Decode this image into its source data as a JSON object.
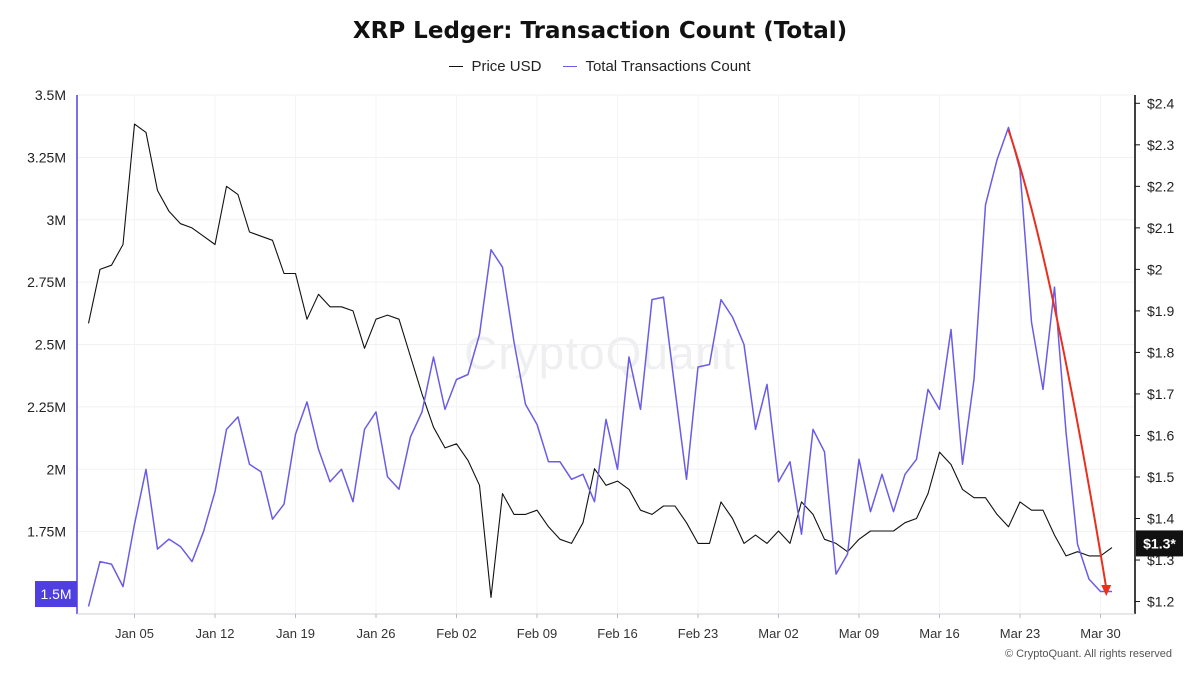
{
  "watermark": "CryptoQuant",
  "copyright": "© CryptoQuant. All rights reserved",
  "colors": {
    "price": "#111111",
    "transactions": "#6b5ce7",
    "arrow": "#e8301d",
    "left_axis": "#5b4be3",
    "badge_left_bg": "#4f3fe0",
    "badge_right_bg": "#111111"
  },
  "chart_data": {
    "type": "line",
    "title": "XRP Ledger: Transaction Count (Total)",
    "x_tick_labels": [
      "Jan 05",
      "Jan 12",
      "Jan 19",
      "Jan 26",
      "Feb 02",
      "Feb 09",
      "Feb 16",
      "Feb 23",
      "Mar 02",
      "Mar 09",
      "Mar 16",
      "Mar 23",
      "Mar 30"
    ],
    "x_tick_days": [
      4,
      11,
      18,
      25,
      32,
      39,
      46,
      53,
      60,
      67,
      74,
      81,
      88
    ],
    "left_axis": {
      "ylim": [
        1.42,
        3.5
      ],
      "ticks": [
        1.75,
        2,
        2.25,
        2.5,
        2.75,
        3,
        3.25,
        3.5
      ],
      "tick_labels": [
        "1.75M",
        "2M",
        "2.25M",
        "2.5M",
        "2.75M",
        "3M",
        "3.25M",
        "3.5M"
      ],
      "current_label": "1.5M",
      "current_value": 1.5
    },
    "right_axis": {
      "ylim": [
        1.17,
        2.42
      ],
      "ticks": [
        1.2,
        1.3,
        1.4,
        1.5,
        1.6,
        1.7,
        1.8,
        1.9,
        2,
        2.1,
        2.2,
        2.3,
        2.4
      ],
      "tick_labels": [
        "$1.2",
        "$1.3",
        "$1.4",
        "$1.5",
        "$1.6",
        "$1.7",
        "$1.8",
        "$1.9",
        "$2",
        "$2.1",
        "$2.2",
        "$2.3",
        "$2.4"
      ],
      "current_label": "$1.3*",
      "current_value": 1.34
    },
    "grid": true,
    "legend_position": "top-center",
    "series": [
      {
        "name": "Price USD",
        "axis": "right",
        "x_start_day": 0,
        "values": [
          1.87,
          2.0,
          2.01,
          2.06,
          2.35,
          2.33,
          2.19,
          2.14,
          2.11,
          2.1,
          2.08,
          2.06,
          2.2,
          2.18,
          2.09,
          2.08,
          2.07,
          1.99,
          1.99,
          1.88,
          1.94,
          1.91,
          1.91,
          1.9,
          1.81,
          1.88,
          1.89,
          1.88,
          1.79,
          1.7,
          1.62,
          1.57,
          1.58,
          1.54,
          1.48,
          1.21,
          1.46,
          1.41,
          1.41,
          1.42,
          1.38,
          1.35,
          1.34,
          1.39,
          1.52,
          1.48,
          1.49,
          1.47,
          1.42,
          1.41,
          1.43,
          1.43,
          1.39,
          1.34,
          1.34,
          1.44,
          1.4,
          1.34,
          1.36,
          1.34,
          1.37,
          1.34,
          1.44,
          1.41,
          1.35,
          1.34,
          1.32,
          1.35,
          1.37,
          1.37,
          1.37,
          1.39,
          1.4,
          1.46,
          1.56,
          1.53,
          1.47,
          1.45,
          1.45,
          1.41,
          1.38,
          1.44,
          1.42,
          1.42,
          1.36,
          1.31,
          1.32,
          1.31,
          1.31,
          1.33
        ]
      },
      {
        "name": "Total Transactions Count",
        "axis": "left",
        "x_start_day": 0,
        "values": [
          1.45,
          1.63,
          1.62,
          1.53,
          1.78,
          2.0,
          1.68,
          1.72,
          1.69,
          1.63,
          1.75,
          1.91,
          2.16,
          2.21,
          2.02,
          1.99,
          1.8,
          1.86,
          2.14,
          2.27,
          2.08,
          1.95,
          2.0,
          1.87,
          2.16,
          2.23,
          1.97,
          1.92,
          2.13,
          2.23,
          2.45,
          2.24,
          2.36,
          2.38,
          2.54,
          2.88,
          2.81,
          2.51,
          2.26,
          2.18,
          2.03,
          2.03,
          1.96,
          1.98,
          1.87,
          2.2,
          2.0,
          2.45,
          2.24,
          2.68,
          2.69,
          2.32,
          1.96,
          2.41,
          2.42,
          2.68,
          2.61,
          2.5,
          2.16,
          2.34,
          1.95,
          2.03,
          1.74,
          2.16,
          2.07,
          1.58,
          1.66,
          2.04,
          1.83,
          1.98,
          1.83,
          1.98,
          2.04,
          2.32,
          2.24,
          2.56,
          2.02,
          2.36,
          3.06,
          3.24,
          3.37,
          3.2,
          2.59,
          2.32,
          2.73,
          2.15,
          1.7,
          1.56,
          1.51,
          1.51
        ]
      }
    ],
    "annotation": {
      "type": "arrow",
      "axis": "left",
      "from": {
        "day": 80,
        "value": 3.36
      },
      "to": {
        "day": 88.5,
        "value": 1.5
      }
    }
  }
}
